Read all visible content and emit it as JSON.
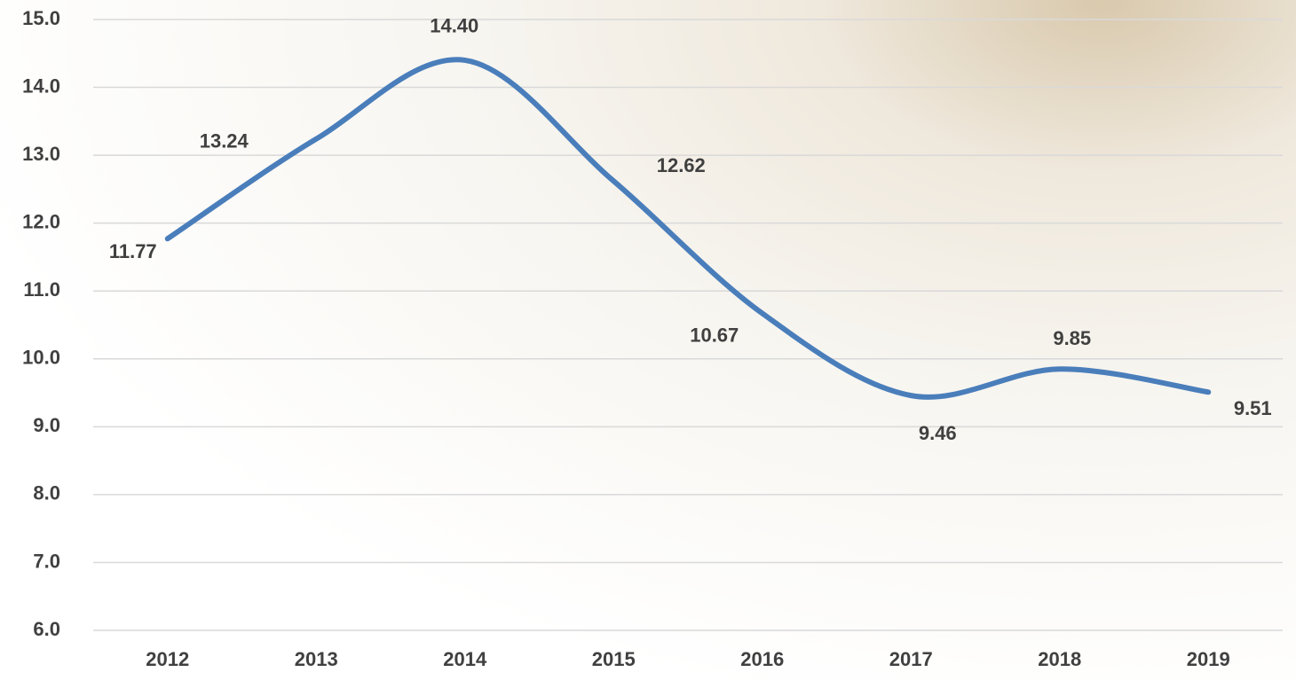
{
  "chart_data": {
    "type": "line",
    "categories": [
      "2012",
      "2013",
      "2014",
      "2015",
      "2016",
      "2017",
      "2018",
      "2019"
    ],
    "values": [
      11.77,
      13.24,
      14.4,
      12.62,
      10.67,
      9.46,
      9.85,
      9.51
    ],
    "value_labels": [
      "11.77",
      "13.24",
      "14.40",
      "12.62",
      "10.67",
      "9.46",
      "9.85",
      "9.51"
    ],
    "color": "#4a7ebb",
    "ylim": [
      6,
      15
    ],
    "yticks": [
      {
        "value": 6,
        "label": "6.0"
      },
      {
        "value": 7,
        "label": "7.0"
      },
      {
        "value": 8,
        "label": "8.0"
      },
      {
        "value": 9,
        "label": "9.0"
      },
      {
        "value": 10,
        "label": "10.0"
      },
      {
        "value": 11,
        "label": "11.0"
      },
      {
        "value": 12,
        "label": "12.0"
      },
      {
        "value": 13,
        "label": "13.0"
      },
      {
        "value": 14,
        "label": "14.0"
      },
      {
        "value": 15,
        "label": "15.0"
      }
    ],
    "grid": true
  }
}
